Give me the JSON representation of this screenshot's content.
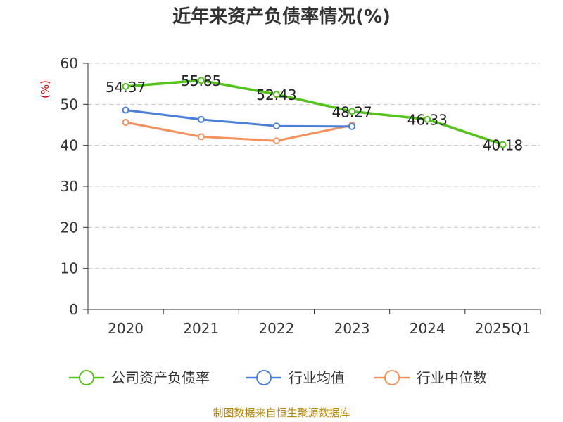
{
  "chart_data": {
    "type": "line",
    "title": "近年来资产负债率情况(%)",
    "ylabel": "(%)",
    "categories": [
      "2020",
      "2021",
      "2022",
      "2023",
      "2024",
      "2025Q1"
    ],
    "ylim": [
      0,
      60
    ],
    "yticks": [
      0,
      10,
      20,
      30,
      40,
      50,
      60
    ],
    "grid": true,
    "legend_position": "bottom",
    "series": [
      {
        "name": "公司资产负债率",
        "color": "#52c41a",
        "values": [
          54.37,
          55.85,
          52.43,
          48.27,
          46.33,
          40.18
        ],
        "labels": [
          "54.37",
          "55.85",
          "52.43",
          "48.27",
          "46.33",
          "40.18"
        ]
      },
      {
        "name": "行业均值",
        "color": "#4a7fdb",
        "values": [
          48.6,
          46.3,
          44.7,
          44.6,
          null,
          null
        ]
      },
      {
        "name": "行业中位数",
        "color": "#f5915a",
        "values": [
          45.6,
          42.1,
          41.1,
          44.9,
          null,
          null
        ]
      }
    ],
    "source": "制图数据来自恒生聚源数据库"
  }
}
